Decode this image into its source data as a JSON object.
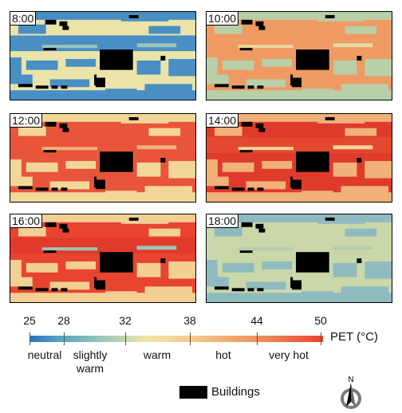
{
  "panels": [
    {
      "time": "8:00",
      "base": "#eae4a8",
      "patch": "#4a8fc4",
      "road": "#4a8fc4",
      "accent": "#9cc4b8"
    },
    {
      "time": "10:00",
      "base": "#ef9a63",
      "patch": "#b8cfa8",
      "road": "#ef9a63",
      "accent": "#e6d9a0"
    },
    {
      "time": "12:00",
      "base": "#e8553a",
      "patch": "#f3d79a",
      "road": "#e8553a",
      "accent": "#f0b27a"
    },
    {
      "time": "14:00",
      "base": "#df3b2c",
      "patch": "#f1b178",
      "road": "#e2492f",
      "accent": "#f6d49a"
    },
    {
      "time": "16:00",
      "base": "#e8442f",
      "patch": "#f2cf93",
      "road": "#e23a2a",
      "accent": "#9cc4b8"
    },
    {
      "time": "18:00",
      "base": "#c9d7a9",
      "patch": "#8fbbc0",
      "road": "#c9d7a9",
      "accent": "#b5cdb0"
    }
  ],
  "scale": {
    "ticks": [
      "25",
      "28",
      "32",
      "38",
      "44",
      "50"
    ],
    "tick_values": [
      25,
      28,
      32,
      38,
      44,
      50
    ],
    "categories": [
      {
        "label": "neutral",
        "center": 26.5
      },
      {
        "label": "slightly warm",
        "center": 30
      },
      {
        "label": "warm",
        "center": 35
      },
      {
        "label": "hot",
        "center": 41
      },
      {
        "label": "very hot",
        "center": 47
      }
    ],
    "title": "PET (°C)",
    "colors": [
      "#2e6fb6",
      "#9cc9b8",
      "#efe6a8",
      "#f6c98c",
      "#f09a64",
      "#e8432f"
    ]
  },
  "legend": {
    "buildings": "Buildings",
    "building_color": "#000000"
  },
  "north": {
    "letter": "N"
  }
}
